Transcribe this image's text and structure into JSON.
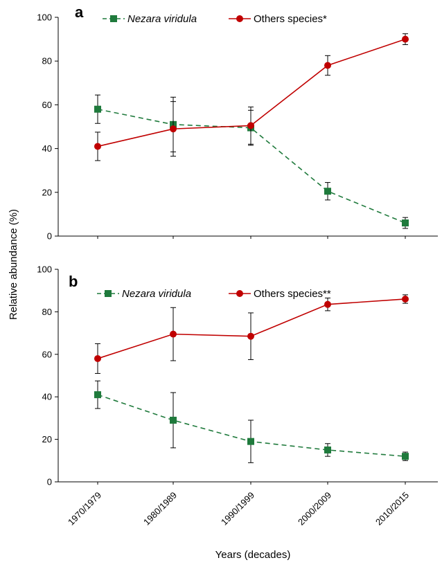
{
  "colors": {
    "nezara": "#1f7a3c",
    "others": "#c00000",
    "axis": "#000000",
    "errorbar": "#000000"
  },
  "ylabel": "Relative abundance (%)",
  "xlabel": "Years (decades)",
  "chart_data": [
    {
      "panel": "a",
      "type": "line",
      "categories": [
        "1970/1979",
        "1980/1989",
        "1990/1999",
        "2000/2009",
        "2010/2015"
      ],
      "ylim": [
        0,
        100
      ],
      "yticks": [
        0,
        20,
        40,
        60,
        80,
        100
      ],
      "grid": false,
      "legend": "top",
      "series": [
        {
          "name": "Nezara viridula",
          "marker": "square",
          "linestyle": "dashed",
          "color": "#1f7a3c",
          "values": [
            58,
            51,
            49.5,
            20.5,
            6
          ],
          "errors": [
            6.5,
            12.5,
            8,
            4,
            2.5
          ]
        },
        {
          "name": "Others species*",
          "marker": "circle",
          "linestyle": "solid",
          "color": "#c00000",
          "values": [
            41,
            49,
            50.5,
            78,
            90
          ],
          "errors": [
            6.5,
            12.5,
            8.5,
            4.5,
            2.5
          ]
        }
      ]
    },
    {
      "panel": "b",
      "type": "line",
      "categories": [
        "1970/1979",
        "1980/1989",
        "1990/1999",
        "2000/2009",
        "2010/2015"
      ],
      "ylim": [
        0,
        100
      ],
      "yticks": [
        0,
        20,
        40,
        60,
        80,
        100
      ],
      "grid": false,
      "legend": "top",
      "series": [
        {
          "name": "Nezara viridula",
          "marker": "square",
          "linestyle": "dashed",
          "color": "#1f7a3c",
          "values": [
            41,
            29,
            19,
            15,
            12
          ],
          "errors": [
            6.5,
            13,
            10,
            3,
            2
          ]
        },
        {
          "name": "Others species**",
          "marker": "circle",
          "linestyle": "solid",
          "color": "#c00000",
          "values": [
            58,
            69.5,
            68.5,
            83.5,
            86
          ],
          "errors": [
            7,
            12.5,
            11,
            3,
            2
          ]
        }
      ]
    }
  ]
}
